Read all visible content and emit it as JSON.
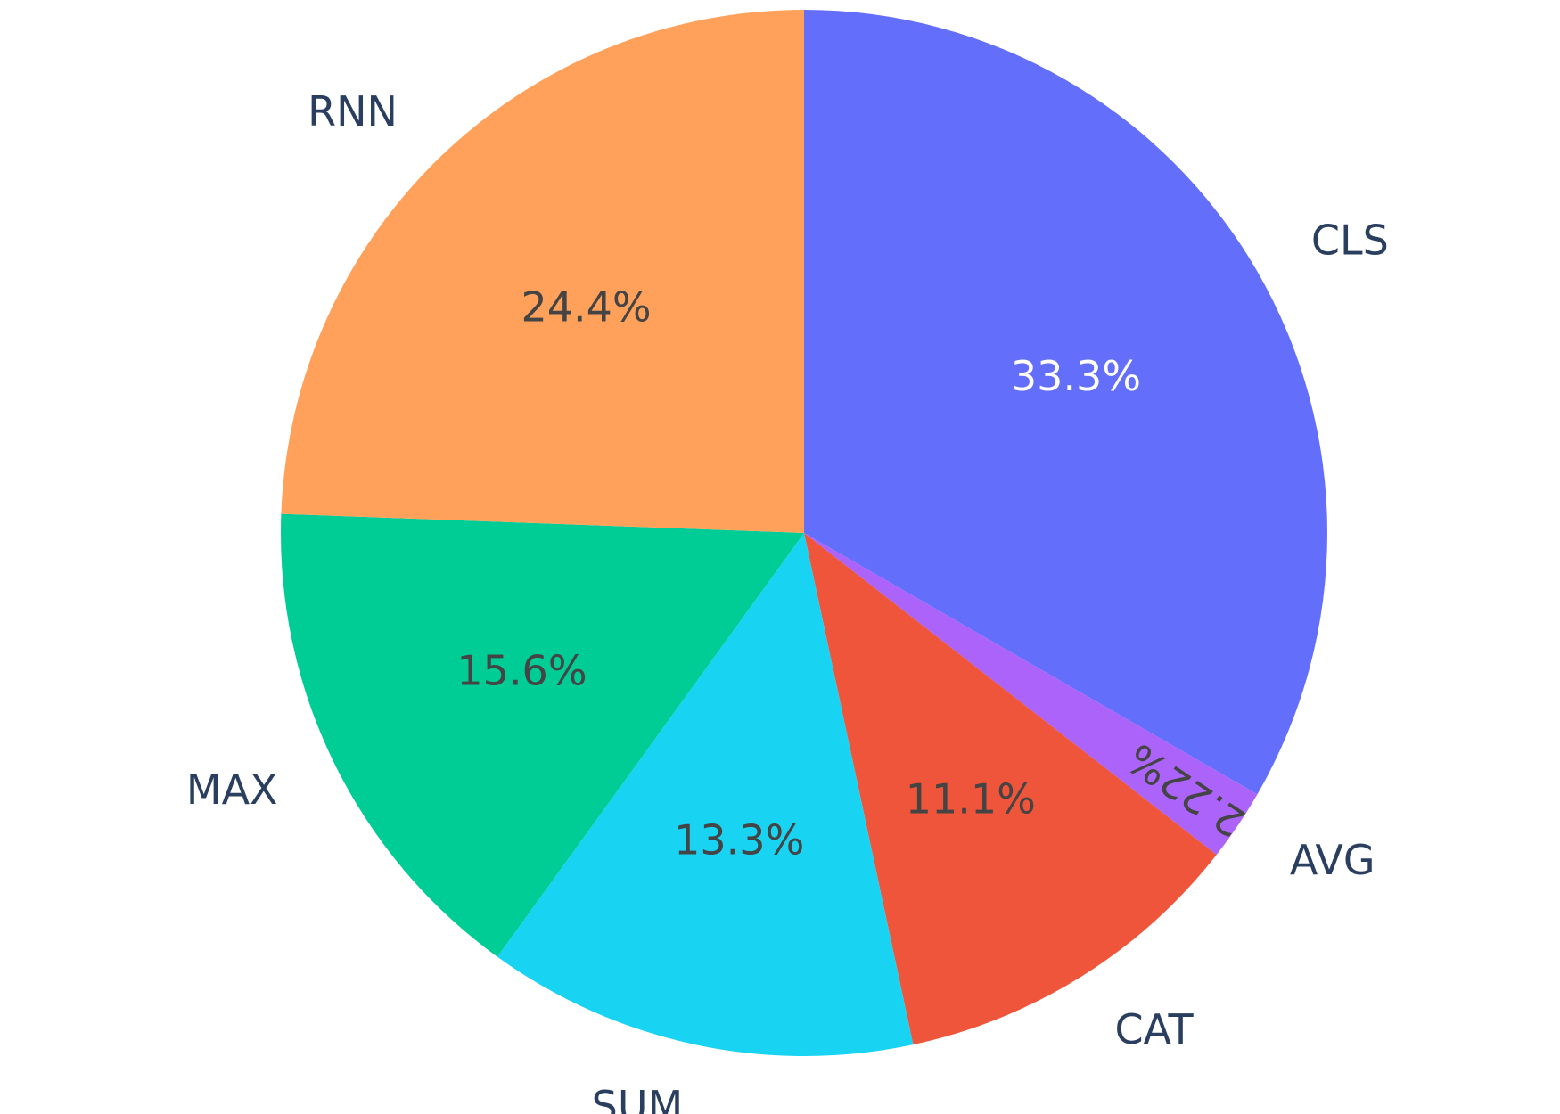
{
  "chart_data": {
    "type": "pie",
    "title": "",
    "direction": "clockwise",
    "start_angle_deg": 90,
    "slices": [
      {
        "label": "CLS",
        "value": 33.3,
        "text": "33.3%",
        "color": "#636efa",
        "text_color": "#ffffff"
      },
      {
        "label": "AVG",
        "value": 2.22,
        "text": "2.22%",
        "color": "#ab63fa",
        "text_color": "#444444"
      },
      {
        "label": "CAT",
        "value": 11.1,
        "text": "11.1%",
        "color": "#ef553b",
        "text_color": "#444444"
      },
      {
        "label": "SUM",
        "value": 13.3,
        "text": "13.3%",
        "color": "#19d3f3",
        "text_color": "#444444"
      },
      {
        "label": "MAX",
        "value": 15.6,
        "text": "15.6%",
        "color": "#00cc96",
        "text_color": "#444444"
      },
      {
        "label": "RNN",
        "value": 24.4,
        "text": "24.4%",
        "color": "#ffa15a",
        "text_color": "#444444"
      }
    ],
    "legend": "none",
    "label_color": "#2a3f5f"
  }
}
